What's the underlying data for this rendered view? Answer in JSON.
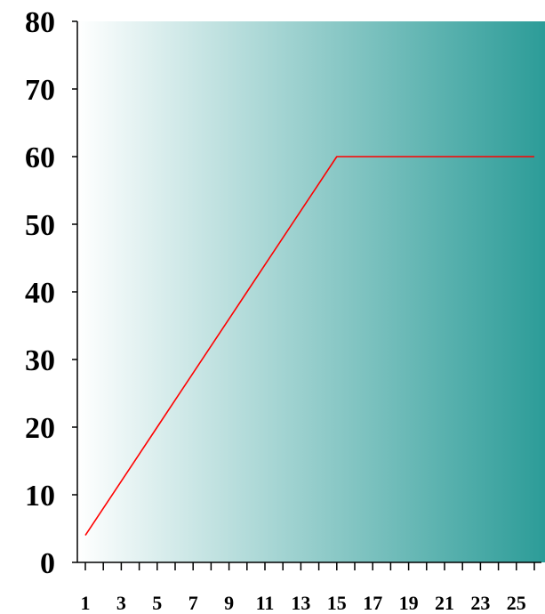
{
  "colors": {
    "line": "#ff0000",
    "axis": "#000000",
    "gradient_start": "#ffffff",
    "gradient_end": "#2c9c98"
  },
  "chart_data": {
    "type": "line",
    "title": "",
    "xlabel": "",
    "ylabel": "",
    "grid": false,
    "legend": "none",
    "xlim": [
      1,
      26
    ],
    "ylim": [
      0,
      80
    ],
    "y_ticks": [
      "0",
      "10",
      "20",
      "30",
      "40",
      "50",
      "60",
      "70",
      "80"
    ],
    "x_tick_labels": [
      "1",
      "3",
      "5",
      "7",
      "9",
      "11",
      "13",
      "15",
      "17",
      "19",
      "21",
      "23",
      "25"
    ],
    "series": [
      {
        "x": [
          1,
          2,
          3,
          4,
          5,
          6,
          7,
          8,
          9,
          10,
          11,
          12,
          13,
          14,
          15,
          16,
          17,
          18,
          19,
          20,
          21,
          22,
          23,
          24,
          25,
          26
        ],
        "values": [
          4,
          8,
          12,
          16,
          20,
          24,
          28,
          32,
          36,
          40,
          44,
          48,
          52,
          56,
          60,
          60,
          60,
          60,
          60,
          60,
          60,
          60,
          60,
          60,
          60,
          60
        ]
      }
    ]
  }
}
